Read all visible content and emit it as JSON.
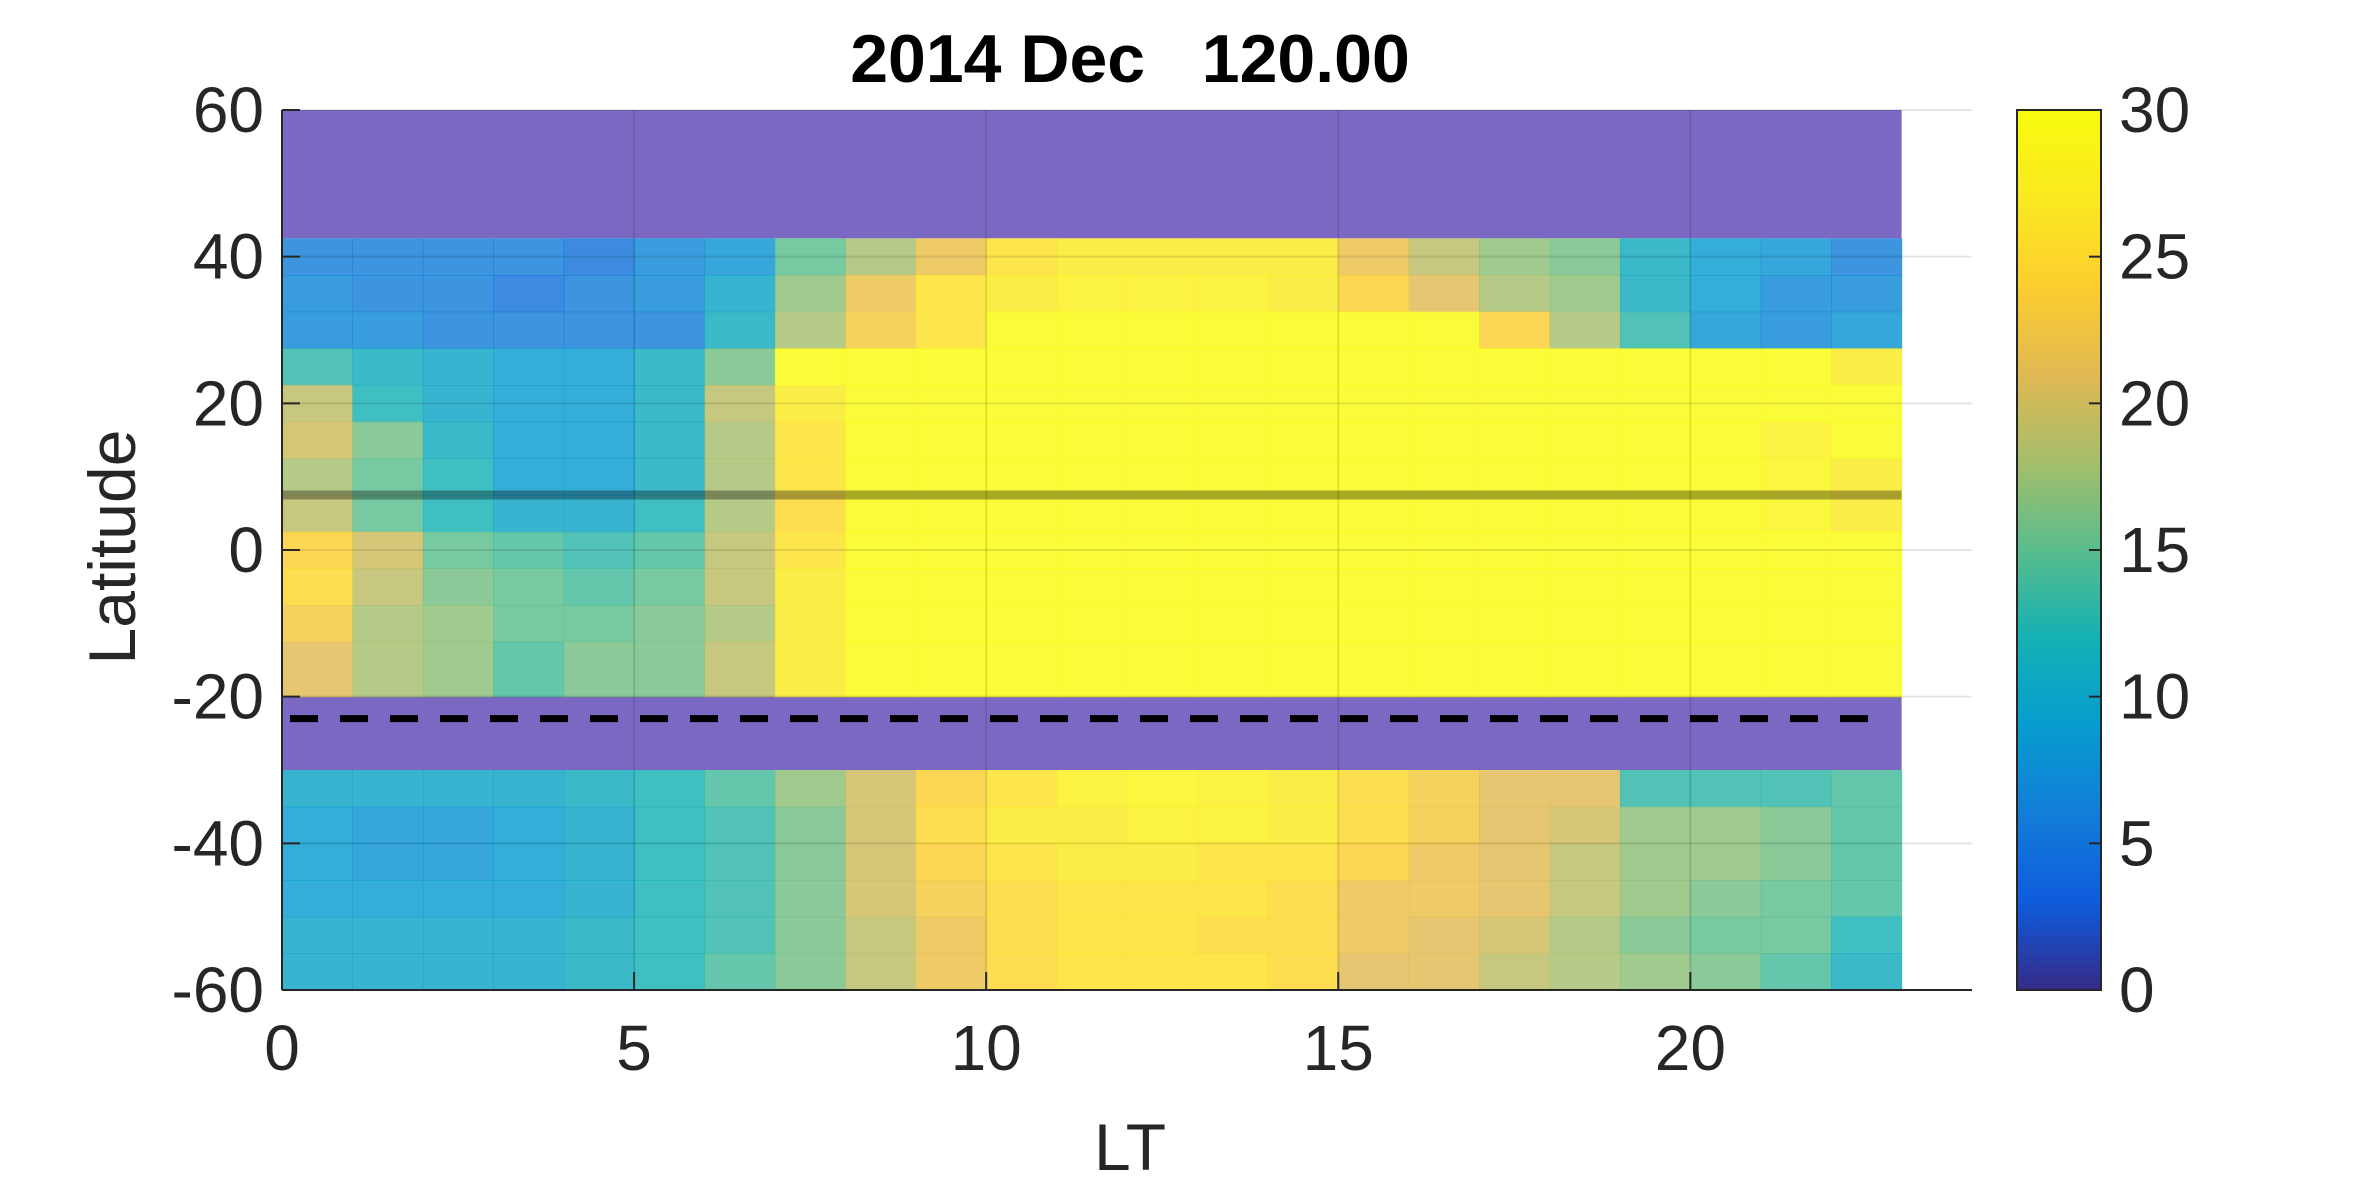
{
  "chart_data": {
    "type": "heatmap",
    "title": "2014 Dec   120.00",
    "xlabel": "LT",
    "ylabel": "Latitude",
    "xlim": [
      0,
      24
    ],
    "ylim": [
      -60,
      60
    ],
    "x_ticks": [
      "0",
      "5",
      "10",
      "15",
      "20"
    ],
    "y_ticks": [
      "60",
      "40",
      "20",
      "0",
      "-20",
      "-40",
      "-60"
    ],
    "colorbar": {
      "min": 0,
      "max": 30,
      "ticks": [
        "30",
        "25",
        "20",
        "15",
        "10",
        "5",
        "0"
      ],
      "colormap": "parula"
    },
    "grid": true,
    "x_cells": [
      0,
      1,
      2,
      3,
      4,
      5,
      6,
      7,
      8,
      9,
      10,
      11,
      12,
      13,
      14,
      15,
      16,
      17,
      18,
      19,
      20,
      21,
      22
    ],
    "no_data_bands": [
      {
        "lat_from": 42.5,
        "lat_to": 60,
        "color": "#7b68c2"
      },
      {
        "lat_from": -30,
        "lat_to": -20,
        "color": "#7b68c2"
      }
    ],
    "rows": [
      {
        "lat_from": 37.5,
        "lat_to": 42.5,
        "values": [
          6,
          6,
          6,
          6,
          5,
          7,
          8,
          15,
          18,
          22,
          26,
          27,
          27,
          27,
          27,
          22,
          19,
          17,
          16,
          11,
          9,
          8,
          6
        ]
      },
      {
        "lat_from": 32.5,
        "lat_to": 37.5,
        "values": [
          7,
          6,
          6,
          5,
          6,
          7,
          10,
          17,
          22,
          26,
          27,
          28,
          28,
          28,
          27,
          24,
          21,
          18,
          17,
          11,
          9,
          7,
          7
        ]
      },
      {
        "lat_from": 27.5,
        "lat_to": 32.5,
        "values": [
          7,
          7,
          6,
          6,
          6,
          6,
          11,
          18,
          23,
          26,
          30,
          30,
          30,
          30,
          30,
          30,
          30,
          24,
          18,
          13,
          8,
          7,
          8
        ]
      },
      {
        "lat_from": 22.5,
        "lat_to": 27.5,
        "values": [
          13,
          11,
          10,
          9,
          9,
          11,
          16,
          30,
          30,
          30,
          30,
          30,
          30,
          30,
          30,
          30,
          30,
          30,
          30,
          30,
          30,
          30,
          27
        ]
      },
      {
        "lat_from": 17.5,
        "lat_to": 22.5,
        "values": [
          19,
          12,
          10,
          9,
          9,
          11,
          19,
          27,
          30,
          30,
          30,
          30,
          30,
          30,
          30,
          30,
          30,
          30,
          30,
          30,
          30,
          30,
          30
        ]
      },
      {
        "lat_from": 12.5,
        "lat_to": 17.5,
        "values": [
          20,
          16,
          11,
          9,
          9,
          11,
          18,
          26,
          30,
          30,
          30,
          30,
          30,
          30,
          30,
          30,
          30,
          30,
          30,
          30,
          30,
          28,
          30
        ]
      },
      {
        "lat_from": 7.5,
        "lat_to": 12.5,
        "values": [
          18,
          15,
          12,
          9,
          9,
          11,
          18,
          26,
          30,
          30,
          30,
          30,
          30,
          30,
          30,
          30,
          30,
          30,
          30,
          30,
          30,
          29,
          27
        ]
      },
      {
        "lat_from": 2.5,
        "lat_to": 7.5,
        "values": [
          19,
          15,
          12,
          10,
          10,
          12,
          18,
          25,
          30,
          30,
          30,
          30,
          30,
          30,
          30,
          30,
          30,
          30,
          30,
          30,
          30,
          29,
          27
        ]
      },
      {
        "lat_from": -2.5,
        "lat_to": 2.5,
        "values": [
          24,
          20,
          15,
          14,
          13,
          14,
          19,
          26,
          30,
          30,
          30,
          30,
          30,
          30,
          30,
          30,
          30,
          30,
          30,
          30,
          30,
          30,
          30
        ]
      },
      {
        "lat_from": -7.5,
        "lat_to": -2.5,
        "values": [
          25,
          19,
          16,
          15,
          14,
          15,
          19,
          27,
          30,
          30,
          30,
          30,
          30,
          30,
          30,
          30,
          30,
          30,
          30,
          30,
          30,
          30,
          30
        ]
      },
      {
        "lat_from": -12.5,
        "lat_to": -7.5,
        "values": [
          23,
          18,
          17,
          15,
          15,
          16,
          18,
          27,
          30,
          30,
          30,
          30,
          30,
          30,
          30,
          30,
          30,
          30,
          30,
          30,
          30,
          30,
          30
        ]
      },
      {
        "lat_from": -20,
        "lat_to": -12.5,
        "values": [
          21,
          18,
          17,
          14,
          16,
          16,
          19,
          27,
          30,
          30,
          30,
          30,
          30,
          30,
          30,
          30,
          30,
          30,
          30,
          30,
          30,
          30,
          30
        ]
      },
      {
        "lat_from": -35,
        "lat_to": -30,
        "values": [
          10,
          10,
          10,
          10,
          11,
          12,
          14,
          17,
          20,
          24,
          26,
          28,
          29,
          28,
          27,
          25,
          23,
          21,
          21,
          13,
          13,
          13,
          14
        ]
      },
      {
        "lat_from": -40,
        "lat_to": -35,
        "values": [
          9,
          8,
          8,
          9,
          10,
          12,
          13,
          16,
          20,
          25,
          27,
          27,
          28,
          28,
          27,
          25,
          23,
          21,
          20,
          17,
          17,
          16,
          14
        ]
      },
      {
        "lat_from": -45,
        "lat_to": -40,
        "values": [
          9,
          8,
          8,
          9,
          10,
          12,
          13,
          16,
          20,
          24,
          26,
          27,
          27,
          26,
          26,
          24,
          22,
          21,
          19,
          17,
          17,
          16,
          14
        ]
      },
      {
        "lat_from": -50,
        "lat_to": -45,
        "values": [
          9,
          9,
          9,
          9,
          10,
          12,
          13,
          16,
          20,
          23,
          25,
          26,
          26,
          26,
          25,
          22,
          22,
          21,
          19,
          17,
          16,
          15,
          14
        ]
      },
      {
        "lat_from": -55,
        "lat_to": -50,
        "values": [
          10,
          10,
          10,
          10,
          11,
          12,
          13,
          16,
          19,
          22,
          25,
          26,
          26,
          25,
          25,
          22,
          21,
          20,
          18,
          16,
          15,
          15,
          12
        ]
      },
      {
        "lat_from": -60,
        "lat_to": -55,
        "values": [
          10,
          10,
          10,
          10,
          11,
          12,
          14,
          16,
          19,
          22,
          25,
          26,
          26,
          26,
          25,
          21,
          21,
          19,
          18,
          17,
          16,
          14,
          11
        ]
      }
    ],
    "overlay_lines": [
      {
        "lat": 7.5,
        "style": "solid"
      },
      {
        "lat": -23,
        "style": "dashed"
      }
    ]
  }
}
